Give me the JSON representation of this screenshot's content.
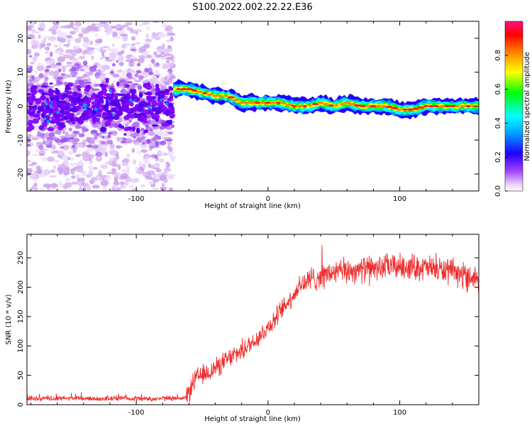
{
  "figure": {
    "title": "S100.2022.002.22.22.E36"
  },
  "chart_data": [
    {
      "type": "heatmap",
      "title": "S100.2022.002.22.22.E36",
      "xlabel": "Height of straight line (km)",
      "ylabel": "Frequency (Hz)",
      "xlim": [
        -183,
        160
      ],
      "ylim": [
        -25,
        25
      ],
      "x_ticks": [
        -100,
        0,
        100
      ],
      "y_ticks": [
        -20,
        -10,
        0,
        10,
        20
      ],
      "grid": false,
      "ridge": {
        "description_points_x": [
          -70,
          -60,
          -50,
          -40,
          -30,
          -20,
          -10,
          0,
          10,
          20,
          30,
          40,
          50,
          60,
          70,
          80,
          90,
          100,
          110,
          120,
          130,
          140,
          150,
          160
        ],
        "frequency_hz": [
          5,
          5,
          4,
          3,
          3,
          1,
          1,
          1,
          1,
          0,
          0,
          1,
          0,
          1,
          0,
          0,
          0,
          -1,
          -1,
          0,
          0,
          0,
          0,
          0
        ]
      },
      "noise_region": {
        "x_from": -183,
        "x_to": -72,
        "dense_band_hz": [
          -7,
          7
        ],
        "sparse_band_hz": [
          -25,
          25
        ]
      },
      "colorbar": {
        "label": "Normalized spectral amplitude",
        "range": [
          0.0,
          1.0
        ],
        "ticks": [
          "0.0",
          "0.2",
          "0.4",
          "0.6",
          "0.8"
        ],
        "tick_values": [
          0.0,
          0.2,
          0.4,
          0.6,
          0.8
        ],
        "colors": [
          "#ffffff",
          "#d9b3f2",
          "#7a00ff",
          "#0000ff",
          "#00ffff",
          "#00ff00",
          "#ffff00",
          "#ff8000",
          "#ff0000",
          "#ff1080"
        ]
      }
    },
    {
      "type": "line",
      "xlabel": "Height of straight line (km)",
      "ylabel": "SNR (10 * v/v)",
      "xlim": [
        -183,
        160
      ],
      "ylim": [
        0,
        290
      ],
      "x_ticks": [
        -100,
        0,
        100
      ],
      "y_ticks": [
        0,
        50,
        100,
        150,
        200,
        250
      ],
      "grid": false,
      "color": "#ee2c2c",
      "x": [
        -183,
        -170,
        -150,
        -130,
        -110,
        -90,
        -70,
        -62,
        -55,
        -45,
        -35,
        -25,
        -15,
        -5,
        5,
        15,
        25,
        35,
        50,
        70,
        90,
        110,
        130,
        150,
        160
      ],
      "y": [
        10,
        10,
        11,
        10,
        11,
        10,
        11,
        12,
        45,
        55,
        70,
        85,
        100,
        120,
        145,
        175,
        205,
        215,
        225,
        230,
        235,
        235,
        230,
        220,
        215
      ]
    }
  ]
}
